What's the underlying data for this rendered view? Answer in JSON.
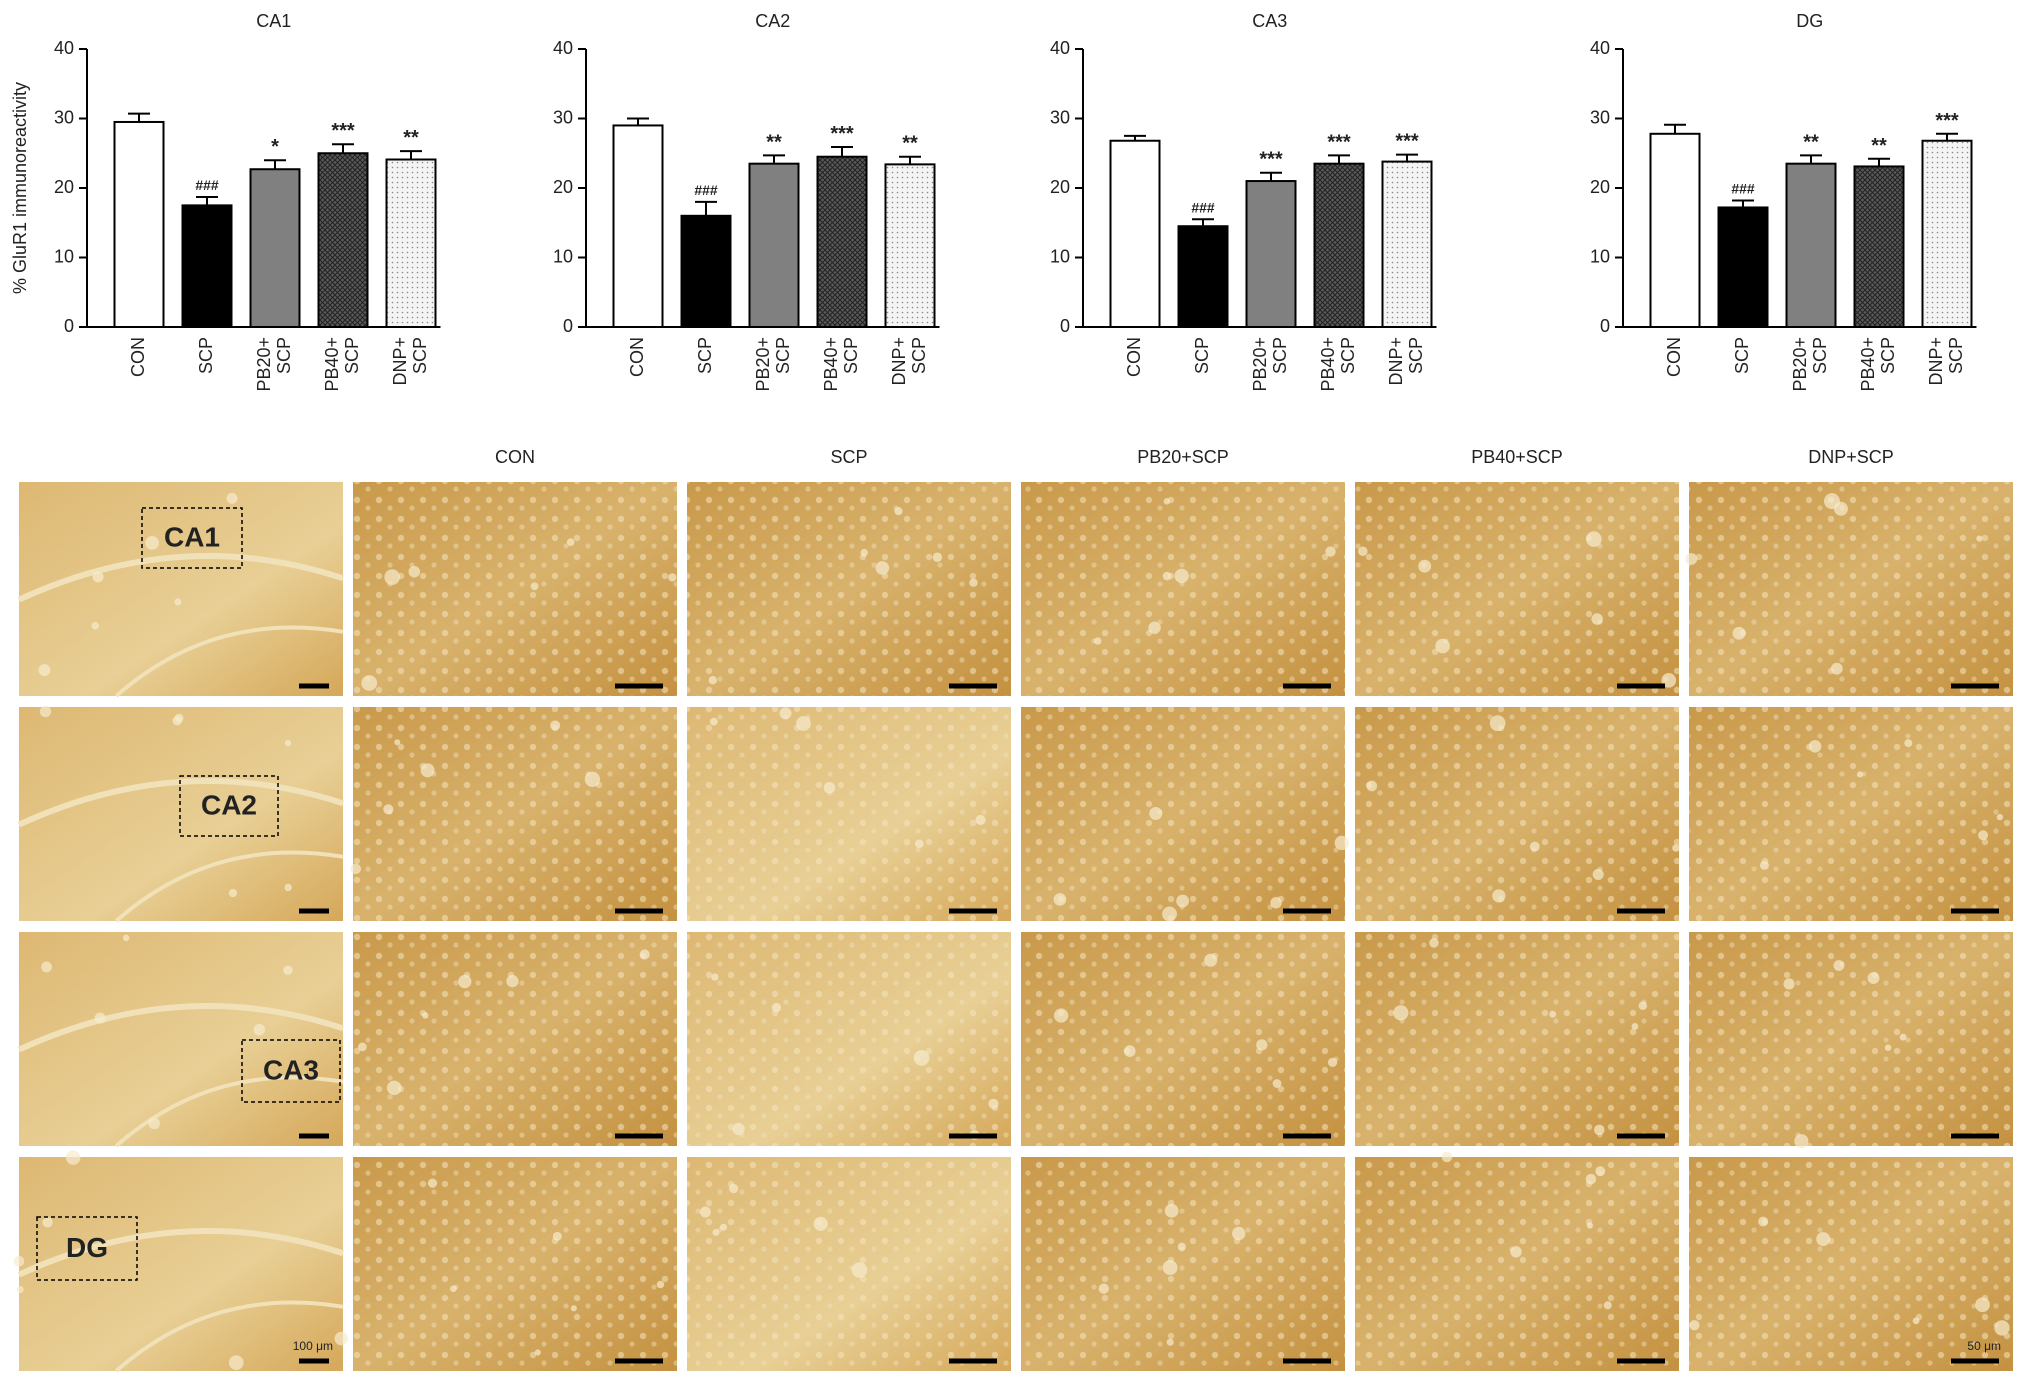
{
  "chart_data": [
    {
      "type": "bar",
      "title": "CA1",
      "ylabel": "% GluR1 immunoreactivity",
      "categories": [
        "CON",
        "SCP",
        "PB20+\nSCP",
        "PB40+\nSCP",
        "DNP+\nSCP"
      ],
      "values": [
        29.5,
        17.5,
        22.7,
        25.0,
        24.1
      ],
      "errors": [
        1.2,
        1.2,
        1.3,
        1.3,
        1.2
      ],
      "annotations": [
        null,
        "###",
        "*",
        "***",
        "**"
      ],
      "fills": [
        "#ffffff",
        "#000000",
        "#808080",
        "crosshatch",
        "dots"
      ],
      "ylim": [
        0,
        40
      ],
      "yticks": [
        0,
        10,
        20,
        30,
        40
      ]
    },
    {
      "type": "bar",
      "title": "CA2",
      "categories": [
        "CON",
        "SCP",
        "PB20+\nSCP",
        "PB40+\nSCP",
        "DNP+\nSCP"
      ],
      "values": [
        29.0,
        16.0,
        23.5,
        24.5,
        23.4
      ],
      "errors": [
        1.0,
        2.0,
        1.2,
        1.4,
        1.1
      ],
      "annotations": [
        null,
        "###",
        "**",
        "***",
        "**"
      ],
      "fills": [
        "#ffffff",
        "#000000",
        "#808080",
        "crosshatch",
        "dots"
      ],
      "ylim": [
        0,
        40
      ],
      "yticks": [
        0,
        10,
        20,
        30,
        40
      ]
    },
    {
      "type": "bar",
      "title": "CA3",
      "categories": [
        "CON",
        "SCP",
        "PB20+\nSCP",
        "PB40+\nSCP",
        "DNP+\nSCP"
      ],
      "values": [
        26.8,
        14.5,
        21.0,
        23.5,
        23.8
      ],
      "errors": [
        0.7,
        1.0,
        1.2,
        1.2,
        1.0
      ],
      "annotations": [
        null,
        "###",
        "***",
        "***",
        "***"
      ],
      "fills": [
        "#ffffff",
        "#000000",
        "#808080",
        "crosshatch",
        "dots"
      ],
      "ylim": [
        0,
        40
      ],
      "yticks": [
        0,
        10,
        20,
        30,
        40
      ]
    },
    {
      "type": "bar",
      "title": "DG",
      "categories": [
        "CON",
        "SCP",
        "PB20+\nSCP",
        "PB40+\nSCP",
        "DNP+\nSCP"
      ],
      "values": [
        27.8,
        17.2,
        23.5,
        23.1,
        26.8
      ],
      "errors": [
        1.3,
        1.0,
        1.2,
        1.1,
        1.0
      ],
      "annotations": [
        null,
        "###",
        "**",
        "**",
        "***"
      ],
      "fills": [
        "#ffffff",
        "#000000",
        "#808080",
        "crosshatch",
        "dots"
      ],
      "ylim": [
        0,
        40
      ],
      "yticks": [
        0,
        10,
        20,
        30,
        40
      ]
    }
  ],
  "micrographs": {
    "columns": [
      "CON",
      "SCP",
      "PB20+SCP",
      "PB40+SCP",
      "DNP+SCP"
    ],
    "regions": [
      "CA1",
      "CA2",
      "CA3",
      "DG"
    ],
    "scale_bars": [
      "100 μm",
      "50 μm"
    ]
  }
}
